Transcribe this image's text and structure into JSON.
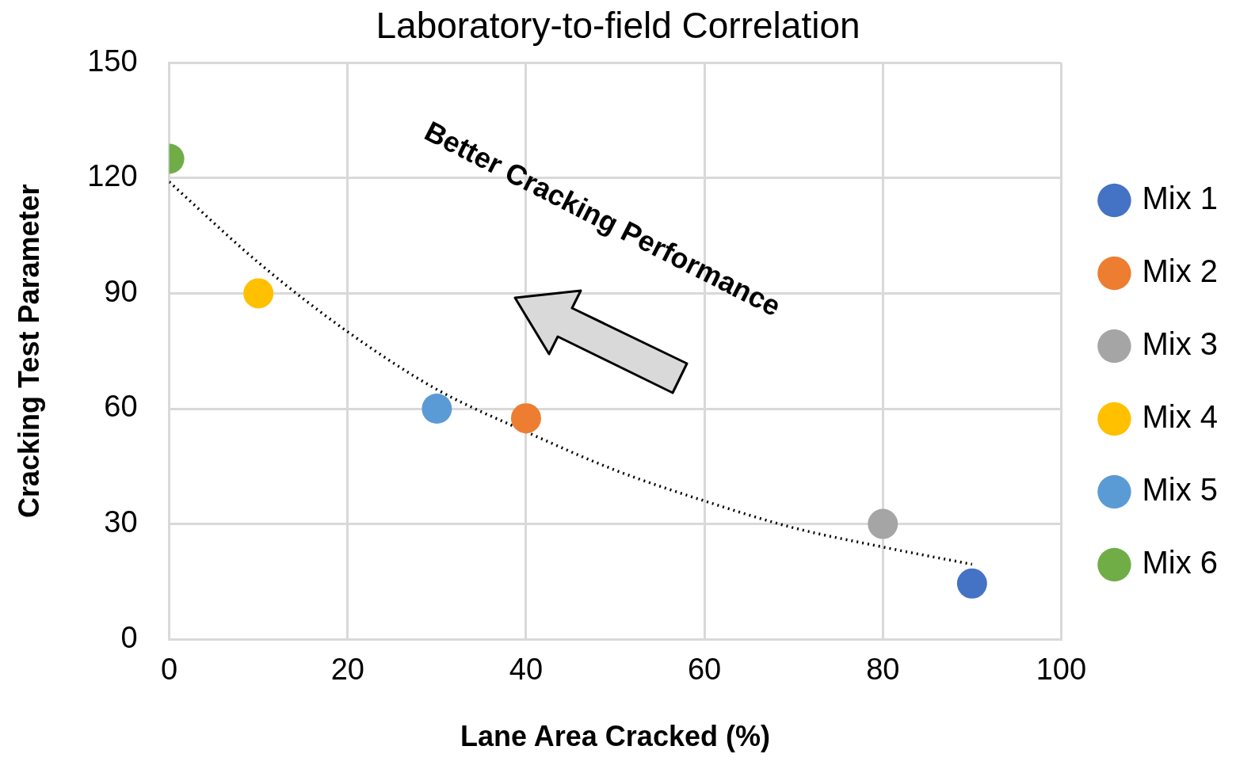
{
  "chart_data": {
    "type": "scatter",
    "title": "Laboratory-to-field Correlation",
    "xlabel": "Lane Area Cracked (%)",
    "ylabel": "Cracking Test Parameter",
    "xlim": [
      0,
      100
    ],
    "xticks": [
      0,
      20,
      40,
      60,
      80,
      100
    ],
    "ylim": [
      0,
      150
    ],
    "yticks": [
      0,
      30,
      60,
      90,
      120,
      150
    ],
    "grid": true,
    "legend": "right",
    "marker": "circle",
    "annotations": [
      "Better Cracking Performance"
    ],
    "series": [
      {
        "name": "Mix 1",
        "color": "#4472c4",
        "x": [
          90
        ],
        "values": [
          14.5
        ]
      },
      {
        "name": "Mix 2",
        "color": "#ed7d31",
        "x": [
          40
        ],
        "values": [
          57.5
        ]
      },
      {
        "name": "Mix 3",
        "color": "#a5a5a5",
        "x": [
          80
        ],
        "values": [
          30
        ]
      },
      {
        "name": "Mix 4",
        "color": "#ffc000",
        "x": [
          10
        ],
        "values": [
          90
        ]
      },
      {
        "name": "Mix 5",
        "color": "#5b9bd5",
        "x": [
          30
        ],
        "values": [
          60
        ]
      },
      {
        "name": "Mix 6",
        "color": "#70ad47",
        "x": [
          0
        ],
        "values": [
          125
        ]
      },
      {
        "type": "line",
        "color": "#000000",
        "line_style": "dotted",
        "marker": "none",
        "x": [
          0,
          10,
          20,
          30,
          40,
          50,
          60,
          70,
          80,
          90
        ],
        "values": [
          119,
          98,
          80,
          65,
          54,
          44,
          36,
          29,
          24,
          19.5
        ]
      }
    ]
  }
}
